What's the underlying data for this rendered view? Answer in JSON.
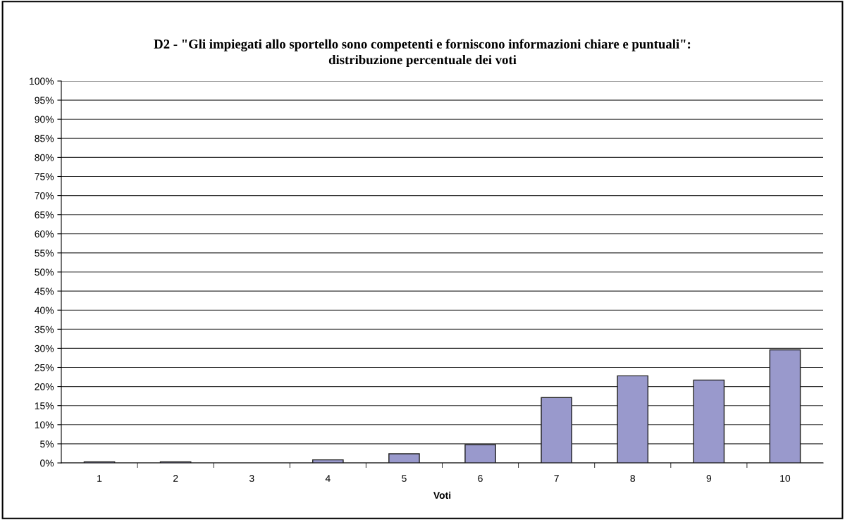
{
  "chart_data": {
    "type": "bar",
    "title": "D2 - \"Gli impiegati allo sportello sono competenti e forniscono informazioni chiare e puntuali\":\ndistribuzione percentuale dei voti",
    "xlabel": "Voti",
    "categories": [
      "1",
      "2",
      "3",
      "4",
      "5",
      "6",
      "7",
      "8",
      "9",
      "10"
    ],
    "values": [
      0.3,
      0.3,
      0,
      0.8,
      2.4,
      4.8,
      17.1,
      22.8,
      21.7,
      29.6
    ],
    "color": "#9999cc",
    "ylim": [
      0,
      100
    ],
    "yticks": [
      {
        "value": 0,
        "label": "0%"
      },
      {
        "value": 5,
        "label": "5%"
      },
      {
        "value": 10,
        "label": "10%"
      },
      {
        "value": 15,
        "label": "15%"
      },
      {
        "value": 20,
        "label": "20%"
      },
      {
        "value": 25,
        "label": "25%"
      },
      {
        "value": 30,
        "label": "30%"
      },
      {
        "value": 35,
        "label": "35%"
      },
      {
        "value": 40,
        "label": "40%"
      },
      {
        "value": 45,
        "label": "45%"
      },
      {
        "value": 50,
        "label": "50%"
      },
      {
        "value": 55,
        "label": "55%"
      },
      {
        "value": 60,
        "label": "60%"
      },
      {
        "value": 65,
        "label": "65%"
      },
      {
        "value": 70,
        "label": "70%"
      },
      {
        "value": 75,
        "label": "75%"
      },
      {
        "value": 80,
        "label": "80%"
      },
      {
        "value": 85,
        "label": "85%"
      },
      {
        "value": 90,
        "label": "90%"
      },
      {
        "value": 95,
        "label": "95%"
      },
      {
        "value": 100,
        "label": "100%"
      }
    ],
    "grid": "y"
  }
}
